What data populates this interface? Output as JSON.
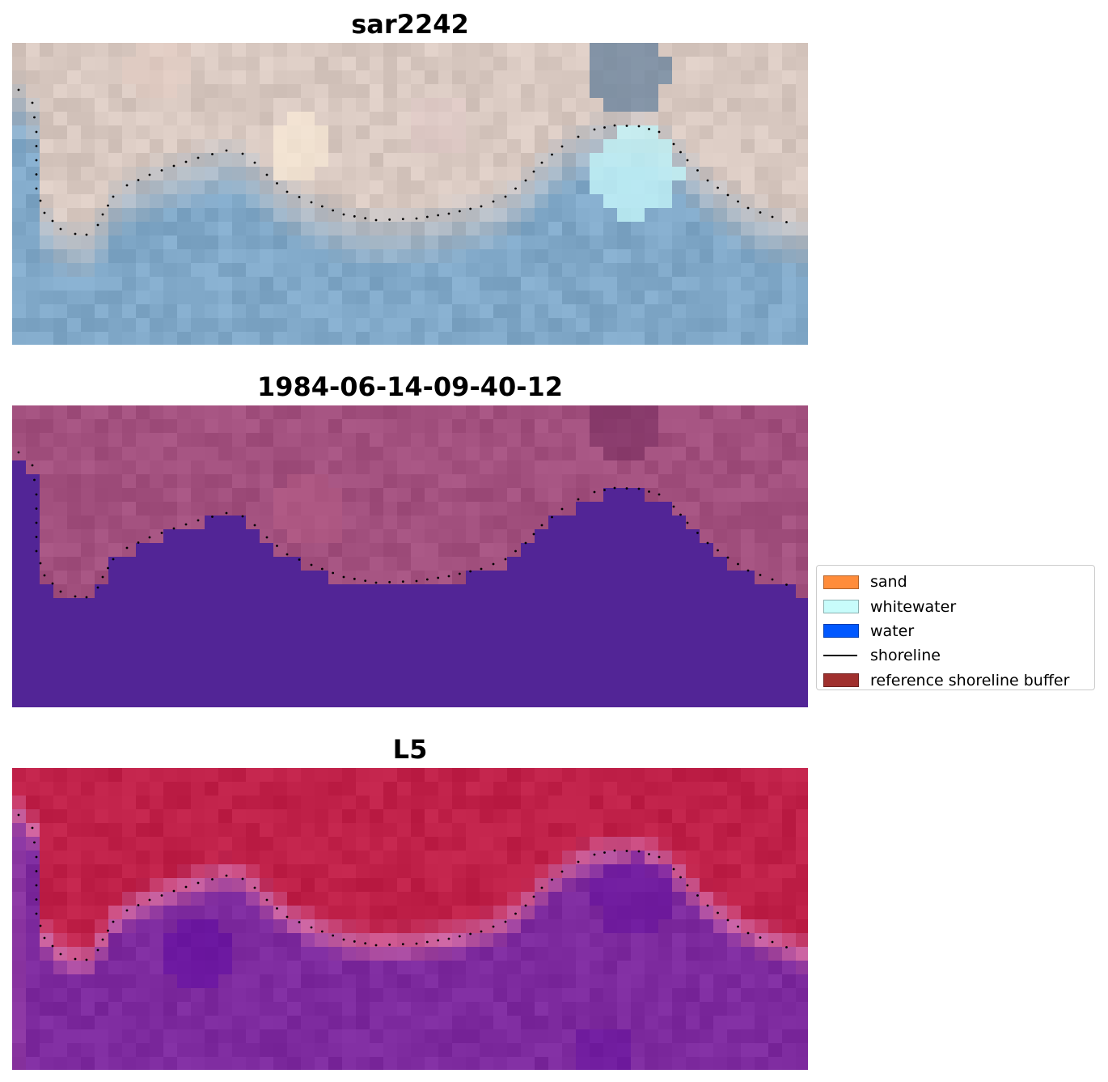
{
  "panels": [
    {
      "title": "sar2242",
      "style": "rgb"
    },
    {
      "title": "1984-06-14-09-40-12",
      "style": "classified"
    },
    {
      "title": "L5",
      "style": "index"
    }
  ],
  "legend": {
    "items": [
      {
        "label": "sand",
        "kind": "patch",
        "color": "#ff8c3a"
      },
      {
        "label": "whitewater",
        "kind": "patch",
        "color": "#c8fcfb"
      },
      {
        "label": "water",
        "kind": "patch",
        "color": "#0058ff"
      },
      {
        "label": "shoreline",
        "kind": "line",
        "color": "#000000"
      },
      {
        "label": "reference shoreline buffer",
        "kind": "patch",
        "color": "#a0302e"
      }
    ]
  },
  "colors": {
    "rgb_sand": "#d8c8c0",
    "rgb_water": "#80a8c8",
    "classified_land": "#a2507e",
    "classified_water": "#522596",
    "index_land": "#bf2048",
    "index_water": "#7d2a9e",
    "shoreline_dots": "#000000"
  }
}
